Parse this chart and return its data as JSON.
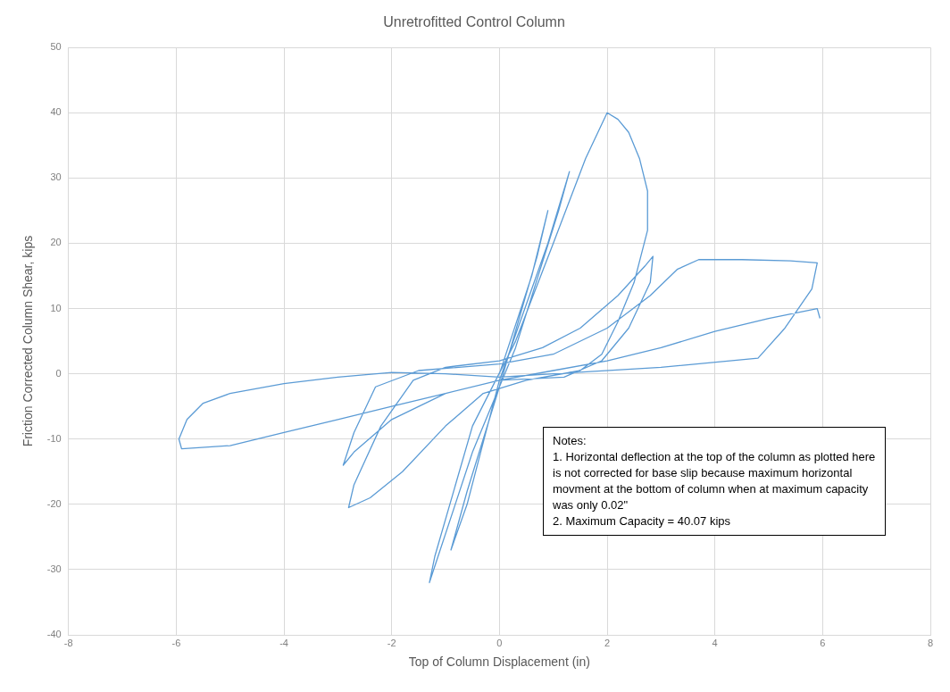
{
  "chart_data": {
    "type": "line",
    "title": "Unretrofitted Control Column",
    "xlabel": "Top of Column Displacement (in)",
    "ylabel": "Friction Corrected Column Shear, kips",
    "xlim": [
      -8,
      8
    ],
    "xticks": [
      -8,
      -6,
      -4,
      -2,
      0,
      2,
      4,
      6,
      8
    ],
    "ylim": [
      -40,
      50
    ],
    "yticks": [
      -40,
      -30,
      -20,
      -10,
      0,
      10,
      20,
      30,
      40,
      50
    ],
    "grid": true,
    "legend": false,
    "marker": "none",
    "line_style": "solid",
    "annotations": [
      "Notes:",
      "1.  Horizontal deflection at the top of the column as plotted here is not corrected for base slip because maximum horizontal movment at the bottom of column when at maximum capacity was only 0.02\"",
      "2. Maximum Capacity = 40.07 kips"
    ],
    "series": [
      {
        "color": "#5b9bd5",
        "x": [
          0,
          0.6,
          0.9,
          0.7,
          0,
          -0.6,
          -0.9,
          -0.6,
          0,
          0.9,
          1.3,
          1.1,
          0.3,
          -0.5,
          -1.3,
          -1.2,
          -0.5,
          0.3,
          1.0,
          1.6,
          2.0,
          2.2,
          2.4,
          2.6,
          2.75,
          2.75,
          2.5,
          2.2,
          1.9,
          1.5,
          0.5,
          -0.3,
          -1.0,
          -1.8,
          -2.4,
          -2.8,
          -2.7,
          -2.2,
          -1.6,
          -1.0,
          0,
          0.8,
          1.5,
          2.2,
          2.7,
          2.85,
          2.8,
          2.4,
          1.9,
          1.2,
          0,
          -1,
          -2,
          -2.7,
          -2.9,
          -2.7,
          -2.3,
          -1.5,
          0,
          1,
          2,
          2.8,
          3.3,
          3.7,
          4.5,
          5.4,
          5.9,
          5.8,
          5.3,
          4.8,
          3,
          1,
          0,
          -1,
          -2,
          -3,
          -4,
          -5,
          -5.5,
          -5.8,
          -5.95,
          -5.9,
          -5,
          -4,
          -3,
          -2,
          -1,
          0,
          1,
          2,
          3,
          4,
          5,
          5.9,
          5.95
        ],
        "values": [
          0,
          15,
          25,
          18,
          -2,
          -18,
          -27,
          -20,
          -1,
          20,
          31,
          25,
          4,
          -12,
          -32,
          -28,
          -8,
          5,
          20,
          33,
          40,
          39,
          37,
          33,
          28,
          22,
          14,
          8,
          3,
          0.5,
          -1,
          -3,
          -8,
          -15,
          -19,
          -20.5,
          -17,
          -8,
          -1,
          1,
          2,
          4,
          7,
          12,
          16.5,
          18,
          14,
          7,
          2,
          -0.5,
          -1,
          -3,
          -7,
          -12,
          -14,
          -9,
          -2,
          0.5,
          1.5,
          3,
          7,
          12,
          16,
          17.5,
          17.5,
          17.3,
          17,
          13,
          7,
          2.4,
          1,
          0,
          -0.5,
          0,
          0.2,
          -0.5,
          -1.5,
          -3,
          -4.5,
          -7,
          -10,
          -11.5,
          -11,
          -9,
          -7,
          -5,
          -3,
          -1,
          0.5,
          2,
          4,
          6.5,
          8.5,
          10,
          8.5
        ]
      }
    ]
  }
}
